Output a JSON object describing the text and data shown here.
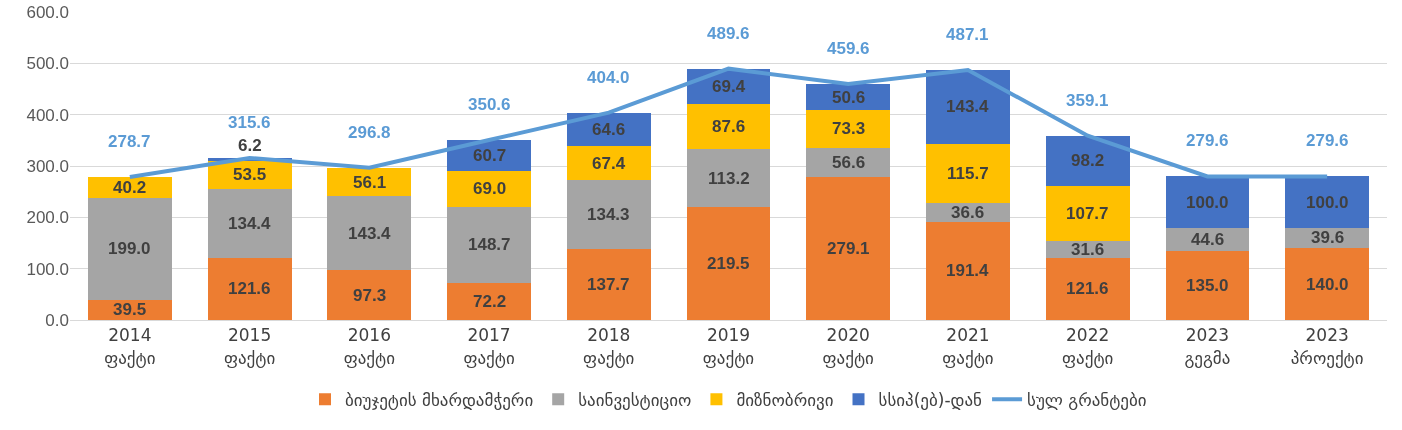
{
  "chart_data": {
    "type": "bar",
    "stacked": true,
    "categories": [
      "2014 ფაქტი",
      "2015 ფაქტი",
      "2016 ფაქტი",
      "2017 ფაქტი",
      "2018 ფაქტი",
      "2019 ფაქტი",
      "2020 ფაქტი",
      "2021 ფაქტი",
      "2022 ფაქტი",
      "2023 გეგმა",
      "2023 პროექტი"
    ],
    "series": [
      {
        "name": "ბიუჯეტის მხარდამჭერი",
        "color": "#ed7d31",
        "values": [
          39.5,
          121.6,
          97.3,
          72.2,
          137.7,
          219.5,
          279.1,
          191.4,
          121.6,
          135.0,
          140.0
        ],
        "value_labels": [
          "39.5",
          "121.6",
          "97.3",
          "72.2",
          "137.7",
          "219.5",
          "279.1",
          "191.4",
          "121.6",
          "135.0",
          "140.0"
        ]
      },
      {
        "name": "საინვესტიციო",
        "color": "#a5a5a5",
        "values": [
          199.0,
          134.4,
          143.4,
          148.7,
          134.3,
          113.2,
          56.6,
          36.6,
          31.6,
          44.6,
          39.6
        ],
        "value_labels": [
          "199.0",
          "134.4",
          "143.4",
          "148.7",
          "134.3",
          "113.2",
          "56.6",
          "36.6",
          "31.6",
          "44.6",
          "39.6"
        ]
      },
      {
        "name": "მიზნობრივი",
        "color": "#ffc000",
        "values": [
          40.2,
          53.5,
          56.1,
          69.0,
          67.4,
          87.6,
          73.3,
          115.7,
          107.7,
          null,
          null
        ],
        "value_labels": [
          "40.2",
          "53.5",
          "56.1",
          "69.0",
          "67.4",
          "87.6",
          "73.3",
          "115.7",
          "107.7",
          null,
          null
        ]
      },
      {
        "name": "სსიპ(ებ)-დან",
        "color": "#4472c4",
        "values": [
          null,
          6.2,
          null,
          60.7,
          64.6,
          69.4,
          50.6,
          143.4,
          98.2,
          100.0,
          100.0
        ],
        "value_labels": [
          null,
          "6.2",
          null,
          "60.7",
          "64.6",
          "69.4",
          "50.6",
          "143.4",
          "98.2",
          "100.0",
          "100.0"
        ]
      },
      {
        "name": "სულ გრანტები",
        "type": "line",
        "color": "#5b9bd5",
        "values": [
          278.7,
          315.6,
          296.8,
          350.6,
          404.0,
          489.6,
          459.6,
          487.1,
          359.1,
          279.6,
          279.6
        ],
        "value_labels": [
          "278.7",
          "315.6",
          "296.8",
          "350.6",
          "404.0",
          "489.6",
          "459.6",
          "487.1",
          "359.1",
          "279.6",
          "279.6"
        ]
      }
    ],
    "ylim": [
      0,
      600
    ],
    "yticks": [
      {
        "value": 0,
        "label": "0.0"
      },
      {
        "value": 100,
        "label": "100.0"
      },
      {
        "value": 200,
        "label": "200.0"
      },
      {
        "value": 300,
        "label": "300.0"
      },
      {
        "value": 400,
        "label": "400.0"
      },
      {
        "value": 500,
        "label": "500.0"
      },
      {
        "value": 600,
        "label": "600.0"
      }
    ],
    "grid": "y",
    "legend": "bottom",
    "marker": "none",
    "line_style": "solid"
  }
}
